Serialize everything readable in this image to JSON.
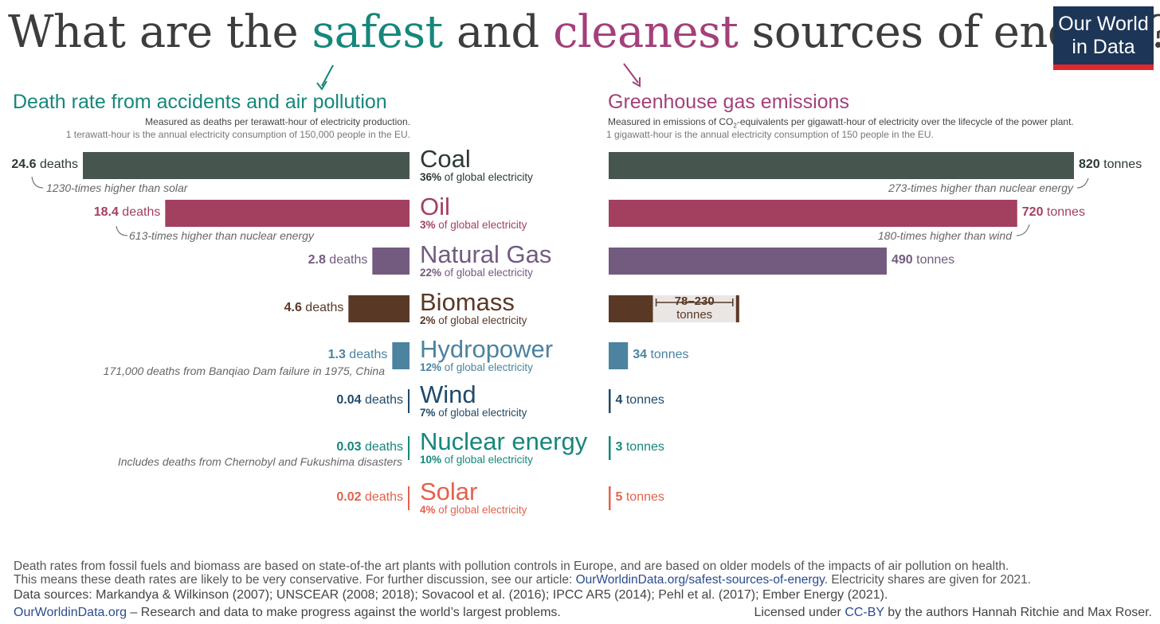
{
  "header": {
    "title_prefix": "What are the ",
    "title_safest": "safest",
    "title_and": " and ",
    "title_cleanest": "cleanest",
    "title_suffix": " sources of energy?",
    "logo_line1": "Our World",
    "logo_line2": "in Data"
  },
  "left_panel": {
    "title": "Death rate from accidents and air pollution",
    "subtitle": "Measured as deaths per terawatt-hour of electricity production.",
    "subtitle2": "1 terawatt-hour is the annual electricity consumption of 150,000 people in the EU."
  },
  "right_panel": {
    "title": "Greenhouse gas emissions",
    "subtitle_a": "Measured in emissions of CO",
    "subtitle_sub": "2",
    "subtitle_b": "-equivalents per gigawatt-hour of electricity over the lifecycle of the power plant.",
    "subtitle2": "1 gigawatt-hour is the annual electricity consumption of 150 people in the EU."
  },
  "chart_data": {
    "type": "bar",
    "categories": [
      "Coal",
      "Oil",
      "Natural Gas",
      "Biomass",
      "Hydropower",
      "Wind",
      "Nuclear energy",
      "Solar"
    ],
    "share_suffix": "of global electricity",
    "death_unit": "deaths",
    "emission_unit": "tonnes",
    "series": [
      {
        "name": "Death rate from accidents and air pollution",
        "values": [
          24.6,
          18.4,
          2.8,
          4.6,
          1.3,
          0.04,
          0.03,
          0.02
        ],
        "labels": [
          "24.6",
          "18.4",
          "2.8",
          "4.6",
          "1.3",
          "0.04",
          "0.03",
          "0.02"
        ]
      },
      {
        "name": "Greenhouse gas emissions",
        "values": [
          820,
          720,
          490,
          230,
          34,
          4,
          3,
          5
        ],
        "labels": [
          "820",
          "720",
          "490",
          "78–230",
          "34",
          "4",
          "3",
          "5"
        ],
        "biomass_range": [
          78,
          230
        ]
      }
    ],
    "shares": [
      "36%",
      "3%",
      "22%",
      "2%",
      "12%",
      "7%",
      "10%",
      "4%"
    ],
    "colors": [
      "#46564e",
      "#a3405f",
      "#735b80",
      "#5a3826",
      "#4b83a0",
      "#1f4a6b",
      "#16877b",
      "#e3624b"
    ],
    "label_colors": [
      "#2c3a33",
      "#a3405f",
      "#735b80",
      "#5a3826",
      "#4b83a0",
      "#1f4a6b",
      "#16877b",
      "#e3624b"
    ],
    "biomass_range_bg": "#eae6e3",
    "annotations": {
      "coal_death": "1230-times higher than solar",
      "oil_death": "613-times higher than nuclear energy",
      "hydro_death": "171,000 deaths from Banqiao Dam failure in 1975, China",
      "nuclear_death": "Includes deaths from Chernobyl and Fukushima disasters",
      "coal_emission": "273-times higher than nuclear energy",
      "oil_emission": "180-times higher than wind"
    }
  },
  "footer": {
    "line1": "Death rates from fossil fuels and biomass are based on state-of-the art plants with pollution controls in Europe, and are based on older models of the impacts of air pollution on health.",
    "line2a": "This means these death rates are likely to be very conservative. For further discussion, see our article: ",
    "line2_link": "OurWorldinData.org/safest-sources-of-energy",
    "line2b": ". Electricity shares are given for 2021.",
    "line3": "Data sources: Markandya & Wilkinson (2007); UNSCEAR (2008; 2018); Sovacool et al. (2016); IPCC AR5 (2014); Pehl et al. (2017); Ember Energy (2021).",
    "site": "OurWorldinData.org",
    "tagline": " – Research and data to make progress against the world’s largest problems.",
    "license_a": "Licensed under ",
    "license_link": "CC-BY",
    "license_b": " by the authors Hannah Ritchie and Max Roser."
  }
}
